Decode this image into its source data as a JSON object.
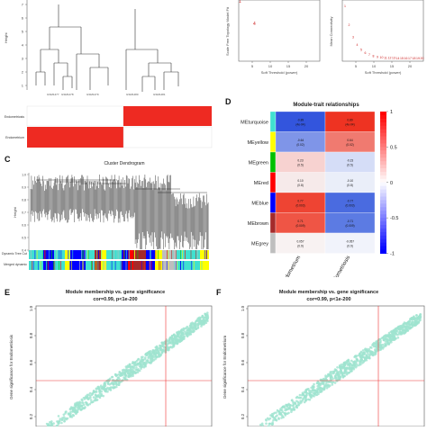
{
  "figure": {
    "panel_labels": {
      "c": "C",
      "d": "D",
      "e": "E",
      "f": "F"
    },
    "panel_a": {
      "y_axis_ticks": [
        "7",
        "6",
        "5",
        "4",
        "3",
        "2",
        "1"
      ],
      "y_axis_title": "Height",
      "trait_rows": [
        "Endometriosis",
        "Endometrium"
      ]
    },
    "panel_b": {
      "left_plot": {
        "ylabel": "Scale Free Topology Model Fit",
        "xlabel": "Soft Threshold (power)",
        "xticks": [
          "5",
          "10",
          "15",
          "20"
        ]
      },
      "right_plot": {
        "ylabel": "Mean Connectivity",
        "xlabel": "Soft Threshold (power)",
        "xticks": [
          "5",
          "10",
          "15",
          "20"
        ]
      }
    },
    "panel_c": {
      "title": "Cluster Dendrogram",
      "y_axis_title": "Height",
      "yticks": [
        "1.0",
        "0.9",
        "0.8",
        "0.7",
        "0.6",
        "0.5",
        "0.4"
      ],
      "color_rows": [
        "Dynamic Tree Cut",
        "Merged dynamic"
      ]
    },
    "panel_d": {
      "title": "Module-trait relationships",
      "modules": [
        "MEturquoise",
        "MEyellow",
        "MEgreen",
        "MEred",
        "MEblue",
        "MEbrown",
        "MEgrey"
      ],
      "module_colors": [
        "#40E0D0",
        "#FFFF00",
        "#00C000",
        "#FF0000",
        "#0000FF",
        "#A52A2A",
        "#BEBEBE"
      ],
      "traits": [
        "Endometrium",
        "Endometriosis"
      ],
      "colorbar_ticks": [
        "1",
        "0.5",
        "0",
        "-0.5",
        "-1"
      ],
      "cells": [
        [
          {
            "text": "-0.89\n(4e-04)",
            "color": "#3355dd"
          },
          {
            "text": "0.89\n(4e-04)",
            "color": "#ee3322"
          }
        ],
        [
          {
            "text": "-0.64\n(0.02)",
            "color": "#7f95e8"
          },
          {
            "text": "0.64\n(0.02)",
            "color": "#f07a70"
          }
        ],
        [
          {
            "text": "0.23\n(0.5)",
            "color": "#f7d2d0"
          },
          {
            "text": "-0.23\n(0.5)",
            "color": "#d5ddf7"
          }
        ],
        [
          {
            "text": "0.10\n(0.8)",
            "color": "#f6eaea"
          },
          {
            "text": "-0.10\n(0.8)",
            "color": "#eaeef9"
          }
        ],
        [
          {
            "text": "0.77\n(0.003)",
            "color": "#ee4433"
          },
          {
            "text": "-0.77\n(0.003)",
            "color": "#4a6be0"
          }
        ],
        [
          {
            "text": "0.71\n(0.009)",
            "color": "#ef5545"
          },
          {
            "text": "-0.71\n(0.009)",
            "color": "#5c7be3"
          }
        ],
        [
          {
            "text": "0.057\n(0.9)",
            "color": "#f8f2f2"
          },
          {
            "text": "-0.057\n(0.9)",
            "color": "#f1f3fb"
          }
        ]
      ]
    },
    "panel_e": {
      "title": "Module membership vs. gene significance",
      "subtitle": "cor=0.99, p<1e-200",
      "ylabel": "Gene significance for Endometriosis",
      "yticks": [
        "1.0",
        "0.8",
        "0.6",
        "0.4",
        "0.2"
      ]
    },
    "panel_f": {
      "title": "Module membership vs. gene significance",
      "subtitle": "cor=0.99, p<1e-200",
      "ylabel": "Gene significance for Endometrium",
      "yticks": [
        "1.0",
        "0.8",
        "0.6",
        "0.4",
        "0.2"
      ]
    },
    "scatter_color": "#9fe3d0",
    "refline_color": "#ee3333"
  }
}
